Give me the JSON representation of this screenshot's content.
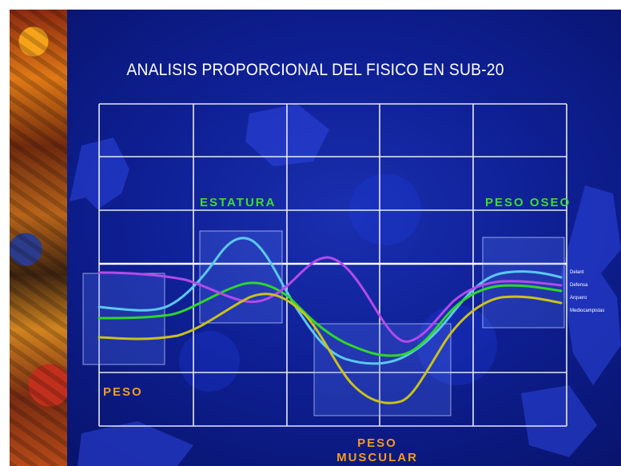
{
  "chart_data": {
    "type": "line",
    "title": "ANALISIS PROPORCIONAL DEL FISICO EN SUB-20",
    "categories": [
      "PESO",
      "ESTATURA",
      "PESO MUSCULAR",
      "PESO OSEO"
    ],
    "category_labels": {
      "peso": "PESO",
      "estatura": "ESTATURA",
      "peso_muscular_line1": "PESO",
      "peso_muscular_line2": "MUSCULAR",
      "peso_oseo": "PESO OSEO"
    },
    "legend": [
      "Delant",
      "Defensa",
      "Arquero",
      "Mediocampistas"
    ],
    "legend_position": "right",
    "grid": true,
    "series": [
      {
        "name": "Delant",
        "color": "#5cc8ef"
      },
      {
        "name": "Defensa",
        "color": "#2fd62a"
      },
      {
        "name": "Arquero",
        "color": "#b44ae8"
      },
      {
        "name": "Mediocampistas",
        "color": "#c9c21a"
      }
    ]
  }
}
